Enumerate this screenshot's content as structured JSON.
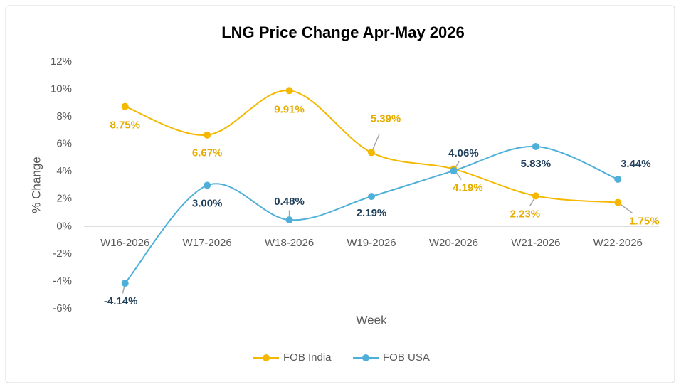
{
  "chart_data": {
    "type": "line",
    "title": "LNG Price Change Apr-May 2026",
    "x_label": "Week",
    "y_label": "% Change",
    "categories": [
      "W16-2026",
      "W17-2026",
      "W18-2026",
      "W19-2026",
      "W20-2026",
      "W21-2026",
      "W22-2026"
    ],
    "series": [
      {
        "name": "FOB India",
        "color": "#f5b800",
        "label_color": "#e6ac00",
        "values": [
          8.75,
          6.67,
          9.91,
          5.39,
          4.19,
          2.23,
          1.75
        ],
        "value_labels": [
          "8.75%",
          "6.67%",
          "9.91%",
          "5.39%",
          "4.19%",
          "2.23%",
          "1.75%"
        ]
      },
      {
        "name": "FOB USA",
        "color": "#4eafd9",
        "label_color": "#1f3f5b",
        "values": [
          -4.14,
          3.0,
          0.48,
          2.19,
          4.06,
          5.83,
          3.44
        ],
        "value_labels": [
          "-4.14%",
          "3.00%",
          "0.48%",
          "2.19%",
          "4.06%",
          "5.83%",
          "3.44%"
        ]
      }
    ],
    "ylim": [
      -6,
      12
    ],
    "yticks": [
      {
        "value": -6,
        "label": "-6%"
      },
      {
        "value": -4,
        "label": "-4%"
      },
      {
        "value": -2,
        "label": "-2%"
      },
      {
        "value": 0,
        "label": "0%"
      },
      {
        "value": 2,
        "label": "2%"
      },
      {
        "value": 4,
        "label": "4%"
      },
      {
        "value": 6,
        "label": "6%"
      },
      {
        "value": 8,
        "label": "8%"
      },
      {
        "value": 10,
        "label": "10%"
      },
      {
        "value": 12,
        "label": "12%"
      }
    ],
    "smooth": true,
    "legend": "bottom"
  }
}
